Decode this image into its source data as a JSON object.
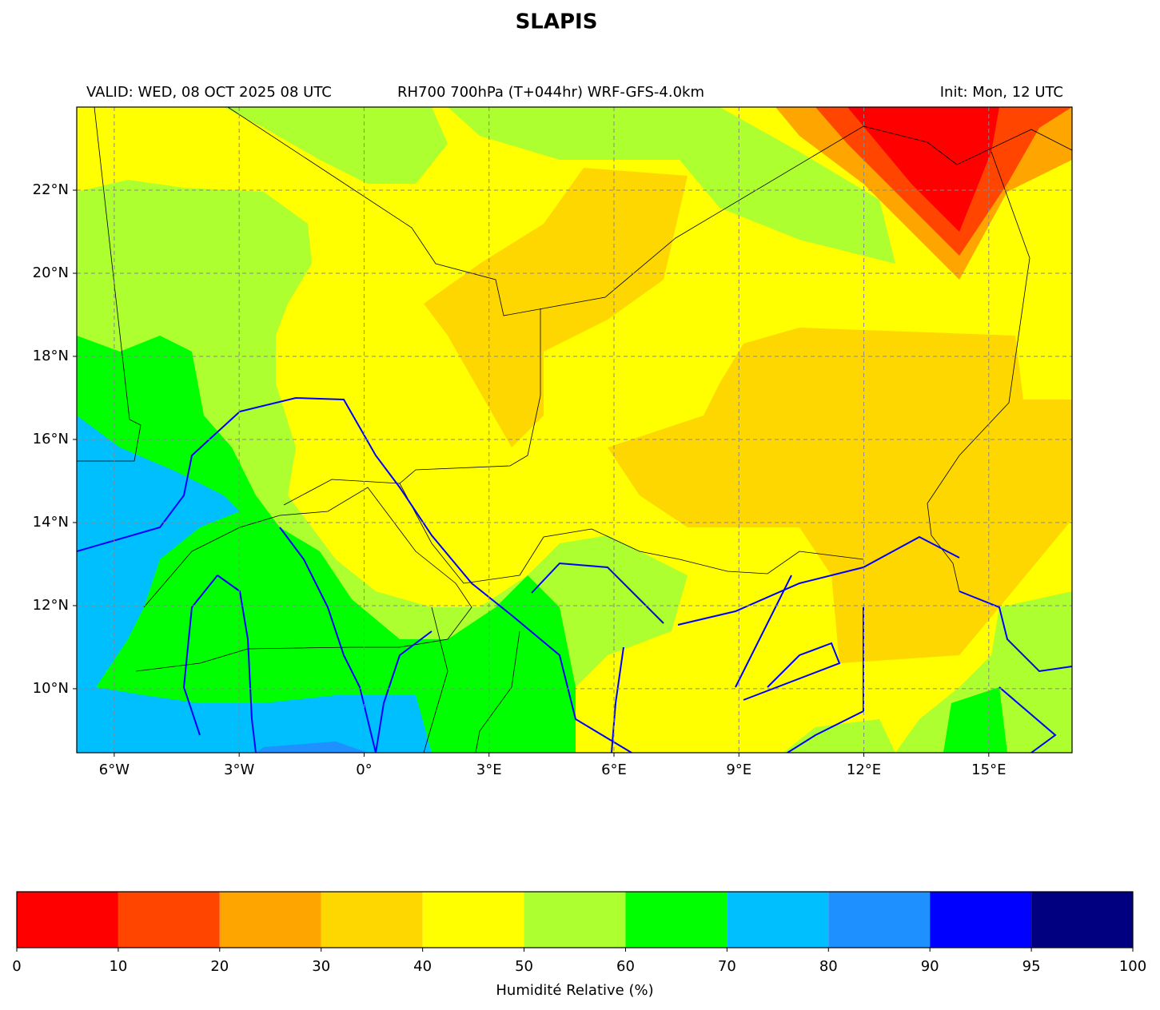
{
  "title": "SLAPIS",
  "header": {
    "valid": "VALID: WED, 08 OCT 2025 08 UTC",
    "product": "RH700 700hPa (T+044hr) WRF-GFS-4.0km",
    "init": "Init: Mon, 12 UTC"
  },
  "map": {
    "xlim": [
      -6.9,
      17
    ],
    "ylim": [
      8.46,
      24
    ],
    "grid": true,
    "xticks": [
      {
        "value": -6,
        "label": "6°W"
      },
      {
        "value": -3,
        "label": "3°W"
      },
      {
        "value": 0,
        "label": "0°"
      },
      {
        "value": 3,
        "label": "3°E"
      },
      {
        "value": 6,
        "label": "6°E"
      },
      {
        "value": 9,
        "label": "9°E"
      },
      {
        "value": 12,
        "label": "12°E"
      },
      {
        "value": 15,
        "label": "15°E"
      }
    ],
    "yticks": [
      {
        "value": 10,
        "label": "10°N"
      },
      {
        "value": 12,
        "label": "12°N"
      },
      {
        "value": 14,
        "label": "14°N"
      },
      {
        "value": 16,
        "label": "16°N"
      },
      {
        "value": 18,
        "label": "18°N"
      },
      {
        "value": 20,
        "label": "20°N"
      },
      {
        "value": 22,
        "label": "22°N"
      }
    ]
  },
  "colorbar": {
    "label": "Humidité Relative (%)",
    "bounds": [
      0,
      10,
      20,
      30,
      40,
      50,
      60,
      70,
      80,
      90,
      95,
      100
    ],
    "colors": [
      "#ff0000",
      "#ff4500",
      "#ffa500",
      "#ffd700",
      "#ffff00",
      "#adff2f",
      "#00ff00",
      "#00bfff",
      "#1e90ff",
      "#0000ff",
      "#000080"
    ]
  }
}
